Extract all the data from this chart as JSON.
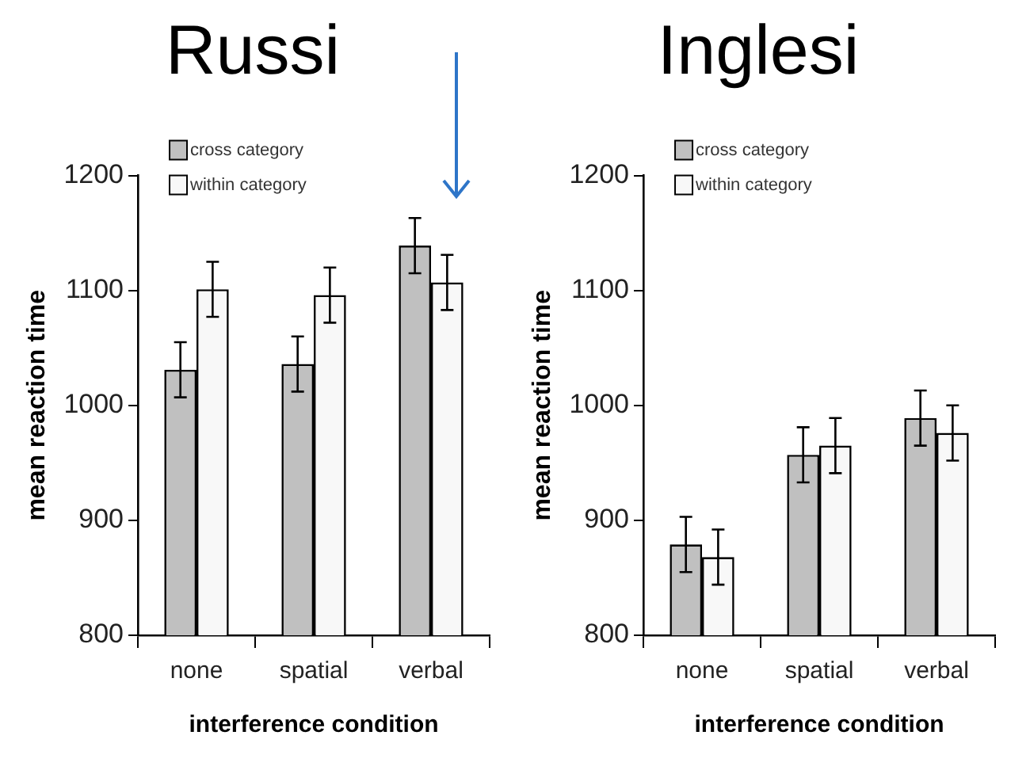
{
  "chart_data": [
    {
      "type": "bar",
      "title": "Russi",
      "xlabel": "interference condition",
      "ylabel": "mean reaction time",
      "categories": [
        "none",
        "spatial",
        "verbal"
      ],
      "series": [
        {
          "name": "cross category",
          "color": "#c0c0c0",
          "values": [
            1031,
            1036,
            1139
          ],
          "errors": [
            24,
            24,
            24
          ]
        },
        {
          "name": "within category",
          "color": "#f8f8f8",
          "values": [
            1101,
            1096,
            1107
          ],
          "errors": [
            24,
            24,
            24
          ]
        }
      ],
      "ylim": [
        800,
        1200
      ],
      "yticks": [
        800,
        900,
        1000,
        1100,
        1200
      ],
      "grid": false,
      "legend": "top"
    },
    {
      "type": "bar",
      "title": "Inglesi",
      "xlabel": "interference condition",
      "ylabel": "mean reaction time",
      "categories": [
        "none",
        "spatial",
        "verbal"
      ],
      "series": [
        {
          "name": "cross category",
          "color": "#c0c0c0",
          "values": [
            879,
            957,
            989
          ],
          "errors": [
            24,
            24,
            24
          ]
        },
        {
          "name": "within category",
          "color": "#f8f8f8",
          "values": [
            868,
            965,
            976
          ],
          "errors": [
            24,
            24,
            24
          ]
        }
      ],
      "ylim": [
        800,
        1200
      ],
      "yticks": [
        800,
        900,
        1000,
        1100,
        1200
      ],
      "grid": false,
      "legend": "top"
    }
  ]
}
